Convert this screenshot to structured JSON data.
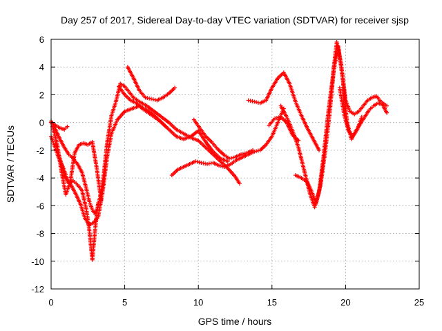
{
  "chart_data": {
    "type": "scatter",
    "title": "Day 257 of 2017, Sidereal Day-to-day VTEC variation (SDTVAR) for receiver sjsp",
    "xlabel": "GPS time / hours",
    "ylabel": "SDTVAR / TECUs",
    "xlim": [
      0,
      25
    ],
    "ylim": [
      -12,
      6
    ],
    "xticks": [
      0,
      5,
      10,
      15,
      20,
      25
    ],
    "yticks": [
      -12,
      -10,
      -8,
      -6,
      -4,
      -2,
      0,
      2,
      4,
      6
    ],
    "grid": true,
    "marker": "+",
    "color": "#ff0000",
    "series": [
      {
        "x": [
          0.0,
          0.3,
          0.6,
          0.9,
          1.2,
          1.5,
          1.8,
          2.1,
          2.4,
          2.6,
          2.8,
          3.0,
          3.2,
          3.5,
          3.8,
          4.1,
          4.4,
          4.7,
          5.0,
          5.3,
          5.6,
          6.0,
          6.5,
          7.0,
          7.5,
          8.0,
          8.5,
          9.0,
          9.5,
          10.0,
          10.5,
          11.0,
          11.5,
          12.0,
          12.5,
          12.8
        ],
        "y": [
          0.1,
          -0.5,
          -1.2,
          -1.8,
          -2.3,
          -2.6,
          -3.0,
          -3.6,
          -4.8,
          -5.7,
          -6.3,
          -6.6,
          -6.0,
          -4.5,
          -1.5,
          0.5,
          1.5,
          2.8,
          2.6,
          2.2,
          1.8,
          1.5,
          1.2,
          0.8,
          0.4,
          0.0,
          -0.5,
          -0.8,
          -1.1,
          -1.3,
          -1.8,
          -2.3,
          -2.8,
          -3.3,
          -3.9,
          -4.4
        ]
      },
      {
        "x": [
          0.0,
          0.2,
          0.5,
          0.8,
          1.1,
          1.4,
          1.7,
          2.0,
          2.3,
          2.6,
          2.9,
          3.2,
          3.5,
          3.8,
          4.1,
          4.5,
          5.0,
          5.5,
          6.0,
          6.5,
          7.0,
          7.5,
          8.0,
          8.5,
          9.0,
          9.5,
          10.0,
          10.5,
          11.0,
          11.5,
          12.0
        ],
        "y": [
          -1.0,
          -1.6,
          -2.5,
          -3.2,
          -4.1,
          -4.6,
          -5.2,
          -5.9,
          -6.9,
          -7.4,
          -7.2,
          -6.8,
          -5.0,
          -2.5,
          -0.8,
          0.2,
          0.8,
          1.0,
          1.2,
          0.9,
          0.5,
          0.0,
          -0.5,
          -1.0,
          -1.2,
          -1.0,
          -0.6,
          -1.4,
          -2.1,
          -2.6,
          -2.8
        ]
      },
      {
        "x": [
          0.3,
          0.6,
          0.9,
          1.2,
          1.5,
          1.8,
          2.1,
          2.4,
          2.6,
          2.8,
          3.0,
          3.2
        ],
        "y": [
          -1.5,
          -2.6,
          -3.8,
          -4.4,
          -4.2,
          -4.5,
          -4.9,
          -6.3,
          -7.8,
          -9.9,
          -7.6,
          -5.8
        ]
      },
      {
        "x": [
          0.1,
          0.4,
          0.7,
          1.0,
          1.3,
          1.6,
          1.9,
          2.2,
          2.5,
          2.8,
          3.1,
          3.4
        ],
        "y": [
          -0.3,
          -1.5,
          -3.5,
          -5.2,
          -4.3,
          -2.2,
          -1.6,
          -1.5,
          -1.6,
          -1.4,
          -3.3,
          -5.6
        ]
      },
      {
        "x": [
          0.0,
          0.3,
          0.6,
          0.9,
          1.1
        ],
        "y": [
          0.0,
          -0.2,
          -0.4,
          -0.5,
          -0.3
        ]
      },
      {
        "x": [
          5.2,
          5.6,
          6.0,
          6.4,
          6.8,
          7.2,
          7.6,
          8.0,
          8.4
        ],
        "y": [
          4.0,
          3.2,
          2.3,
          1.8,
          1.7,
          1.6,
          1.8,
          2.1,
          2.5
        ]
      },
      {
        "x": [
          4.6,
          5.0,
          5.4,
          5.8,
          6.2,
          6.6,
          7.0,
          7.4,
          7.8
        ],
        "y": [
          2.6,
          2.0,
          1.6,
          1.4,
          1.0,
          0.7,
          0.4,
          0.1,
          -0.3
        ]
      },
      {
        "x": [
          8.2,
          8.6,
          9.0,
          9.4,
          9.8,
          10.2,
          10.6,
          11.0,
          11.4,
          11.8,
          12.2,
          12.6,
          13.0,
          13.4,
          13.8,
          14.2,
          14.6,
          15.0,
          15.4,
          15.8
        ],
        "y": [
          -3.8,
          -3.4,
          -3.2,
          -3.0,
          -2.8,
          -2.9,
          -3.0,
          -2.9,
          -3.1,
          -3.2,
          -3.0,
          -2.7,
          -2.5,
          -2.3,
          -2.1,
          -2.0,
          -1.6,
          -1.0,
          0.0,
          1.0
        ]
      },
      {
        "x": [
          9.7,
          10.1,
          10.5,
          10.9,
          11.3,
          11.7,
          12.1,
          12.5,
          12.9,
          13.3,
          13.7
        ],
        "y": [
          0.2,
          -0.4,
          -1.0,
          -1.4,
          -1.9,
          -2.3,
          -2.6,
          -2.5,
          -2.3,
          -2.2,
          -2.0
        ]
      },
      {
        "x": [
          13.4,
          13.8,
          14.2,
          14.6,
          15.0,
          15.4,
          15.8,
          16.2,
          16.6,
          17.0,
          17.4,
          17.8,
          18.2
        ],
        "y": [
          1.6,
          1.5,
          1.4,
          1.6,
          2.5,
          3.2,
          3.6,
          2.8,
          1.5,
          0.5,
          -0.4,
          -1.2,
          -2.0
        ]
      },
      {
        "x": [
          14.8,
          15.2,
          15.6,
          16.0,
          16.4,
          16.8
        ],
        "y": [
          -0.2,
          0.3,
          0.4,
          0.0,
          -0.9,
          -1.3
        ]
      },
      {
        "x": [
          15.6,
          16.0,
          16.4,
          16.8,
          17.2,
          17.6,
          17.9,
          18.2,
          18.5,
          18.8,
          19.1,
          19.4,
          19.7,
          20.0,
          20.3,
          20.6,
          20.9,
          21.2,
          21.5,
          21.8,
          22.1,
          22.4,
          22.8
        ],
        "y": [
          1.2,
          0.4,
          -0.6,
          -1.8,
          -3.5,
          -5.2,
          -6.1,
          -5.0,
          -2.5,
          0.5,
          3.0,
          5.8,
          4.2,
          1.6,
          0.8,
          0.6,
          0.8,
          1.2,
          1.6,
          1.8,
          1.9,
          1.5,
          1.2
        ]
      },
      {
        "x": [
          16.6,
          17.0,
          17.4,
          17.7,
          18.0,
          18.3,
          18.6,
          18.9,
          19.2,
          19.5,
          19.8,
          20.1,
          20.4,
          20.7,
          21.0,
          21.3,
          21.6,
          21.9,
          22.2,
          22.5,
          22.8
        ],
        "y": [
          -3.8,
          -4.0,
          -4.3,
          -5.0,
          -5.8,
          -4.5,
          -2.2,
          0.5,
          3.8,
          5.5,
          3.2,
          0.0,
          -1.2,
          -0.6,
          -0.1,
          0.4,
          0.9,
          1.2,
          1.4,
          1.3,
          0.7
        ]
      },
      {
        "x": [
          19.6,
          19.9,
          20.2,
          20.5,
          20.8,
          21.1
        ],
        "y": [
          2.5,
          0.6,
          -0.6,
          -1.0,
          -0.5,
          0.4
        ]
      }
    ]
  }
}
